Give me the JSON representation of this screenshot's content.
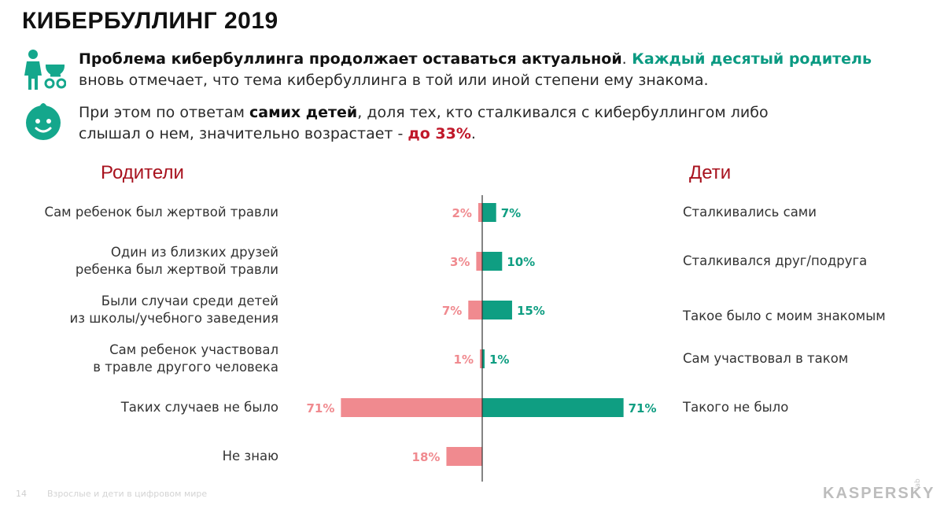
{
  "header": {
    "title": "КИБЕРБУЛЛИНГ 2019"
  },
  "intro": {
    "line1_bold": "Проблема кибербуллинга продолжает оставаться актуальной",
    "line1_dot": ".",
    "line1_teal": " Каждый десятый родитель",
    "line2": "вновь отмечает, что тема кибербуллинга в той или иной степени ему знакома.",
    "p2_a": "При этом по ответам ",
    "p2_bold": "самих детей",
    "p2_b": ", доля тех, кто сталкивался с кибербуллингом либо",
    "p2_c": "слышал о нем, значительно возрастает - ",
    "p2_red": "до 33%",
    "p2_end": "."
  },
  "icons": {
    "parent": "parent-with-stroller-icon",
    "child": "child-face-icon",
    "colors": {
      "icon": "#14a78c"
    }
  },
  "columns": {
    "left": "Родители",
    "right": "Дети"
  },
  "chart_data": {
    "type": "bar",
    "orientation": "horizontal-diverging",
    "series": [
      {
        "name": "Родители",
        "color": "#f08a8f",
        "values": [
          2,
          3,
          7,
          1,
          71,
          18
        ]
      },
      {
        "name": "Дети",
        "color": "#0f9e82",
        "values": [
          7,
          10,
          15,
          1,
          71,
          null
        ]
      }
    ],
    "categories_left": [
      [
        "Сам ребенок был жертвой травли"
      ],
      [
        "Один из близких друзей",
        "ребенка был жертвой травли"
      ],
      [
        "Были случаи среди детей",
        "из школы/учебного заведения"
      ],
      [
        "Сам ребенок участвовал",
        "в травле другого человека"
      ],
      [
        "Таких случаев не было"
      ],
      [
        "Не знаю"
      ]
    ],
    "categories_right": [
      "Сталкивались сами",
      "Сталкивался друг/подруга",
      "Такое было с моим знакомым",
      "Сам участвовал в таком",
      "Такого не было",
      ""
    ],
    "labels_left": [
      "2%",
      "3%",
      "7%",
      "1%",
      "71%",
      "18%"
    ],
    "labels_right": [
      "7%",
      "10%",
      "15%",
      "1%",
      "71%",
      ""
    ],
    "xlim": [
      0,
      71
    ]
  },
  "footer": {
    "page": "14",
    "text": "Взрослые и дети в цифровом мире",
    "logo": "KASPERSKY",
    "logo_sub": "lab"
  }
}
